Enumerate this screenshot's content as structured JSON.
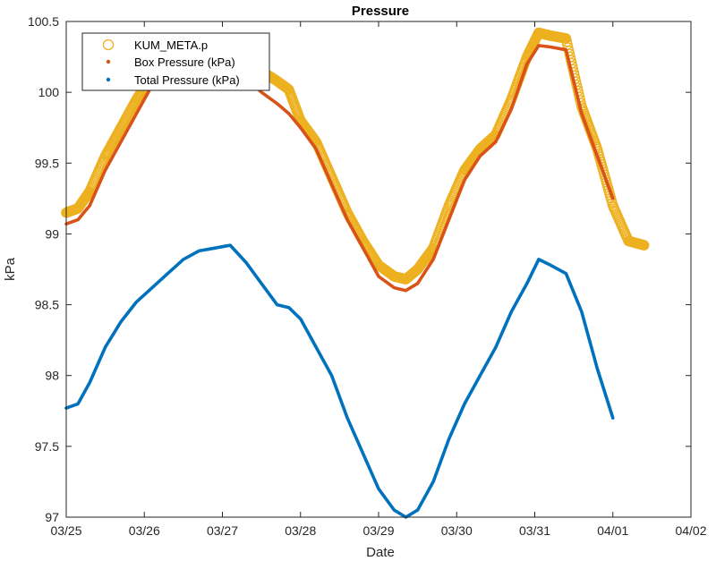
{
  "chart_data": {
    "type": "scatter",
    "title": "Pressure",
    "xlabel": "Date",
    "ylabel": "kPa",
    "x_ticks": [
      "03/25",
      "03/26",
      "03/27",
      "03/28",
      "03/29",
      "03/30",
      "03/31",
      "04/01",
      "04/02"
    ],
    "y_ticks": [
      "97",
      "97.5",
      "98",
      "98.5",
      "99",
      "99.5",
      "100",
      "100.5"
    ],
    "xlim": [
      "2024-03-25",
      "2024-04-02"
    ],
    "ylim": [
      97,
      100.5
    ],
    "grid": false,
    "legend_position": "top-left",
    "series": [
      {
        "name": "KUM_META.p",
        "marker": "circle",
        "color": "#EDB120",
        "x": [
          0.0,
          0.15,
          0.3,
          0.5,
          0.7,
          0.9,
          1.1,
          1.3,
          1.5,
          1.7,
          1.9,
          2.1,
          2.3,
          2.5,
          2.7,
          2.85,
          3.0,
          3.2,
          3.4,
          3.6,
          3.8,
          4.0,
          4.2,
          4.35,
          4.5,
          4.7,
          4.9,
          5.1,
          5.3,
          5.5,
          5.7,
          5.9,
          6.05,
          6.2,
          6.4,
          6.6,
          6.8,
          7.0,
          7.2,
          7.4
        ],
        "y": [
          99.15,
          99.18,
          99.3,
          99.55,
          99.75,
          99.95,
          100.12,
          100.22,
          100.3,
          100.35,
          100.38,
          100.36,
          100.25,
          100.15,
          100.08,
          100.02,
          99.8,
          99.65,
          99.4,
          99.15,
          98.95,
          98.78,
          98.7,
          98.68,
          98.75,
          98.9,
          99.2,
          99.45,
          99.6,
          99.7,
          99.95,
          100.25,
          100.42,
          100.4,
          100.38,
          99.9,
          99.6,
          99.2,
          98.95,
          98.92
        ]
      },
      {
        "name": "Box Pressure (kPa)",
        "marker": "dot",
        "color": "#D95319",
        "x": [
          0.0,
          0.15,
          0.3,
          0.5,
          0.7,
          0.9,
          1.1,
          1.3,
          1.5,
          1.7,
          1.9,
          2.1,
          2.3,
          2.5,
          2.7,
          2.85,
          3.0,
          3.2,
          3.4,
          3.6,
          3.8,
          4.0,
          4.2,
          4.35,
          4.5,
          4.7,
          4.9,
          5.1,
          5.3,
          5.5,
          5.7,
          5.9,
          6.05,
          6.2,
          6.4,
          6.6,
          6.8,
          7.0
        ],
        "y": [
          99.07,
          99.1,
          99.2,
          99.45,
          99.65,
          99.85,
          100.05,
          100.15,
          100.22,
          100.28,
          100.3,
          100.28,
          100.1,
          100.0,
          99.92,
          99.85,
          99.75,
          99.6,
          99.35,
          99.1,
          98.9,
          98.7,
          98.62,
          98.6,
          98.65,
          98.82,
          99.1,
          99.38,
          99.55,
          99.65,
          99.88,
          100.2,
          100.33,
          100.32,
          100.3,
          99.85,
          99.55,
          99.25
        ]
      },
      {
        "name": "Total Pressure (kPa)",
        "marker": "dot",
        "color": "#0072BD",
        "x": [
          0.0,
          0.15,
          0.3,
          0.5,
          0.7,
          0.9,
          1.1,
          1.3,
          1.5,
          1.7,
          1.9,
          2.1,
          2.3,
          2.5,
          2.7,
          2.85,
          3.0,
          3.2,
          3.4,
          3.6,
          3.8,
          4.0,
          4.2,
          4.35,
          4.5,
          4.7,
          4.9,
          5.1,
          5.3,
          5.5,
          5.7,
          5.9,
          6.05,
          6.2,
          6.4,
          6.6,
          6.8,
          7.0
        ],
        "y": [
          97.77,
          97.8,
          97.95,
          98.2,
          98.38,
          98.52,
          98.62,
          98.72,
          98.82,
          98.88,
          98.9,
          98.92,
          98.8,
          98.65,
          98.5,
          98.48,
          98.4,
          98.2,
          98.0,
          97.7,
          97.45,
          97.2,
          97.05,
          97.0,
          97.05,
          97.25,
          97.55,
          97.8,
          98.0,
          98.2,
          98.45,
          98.65,
          98.82,
          98.78,
          98.72,
          98.45,
          98.05,
          97.7
        ]
      }
    ]
  }
}
